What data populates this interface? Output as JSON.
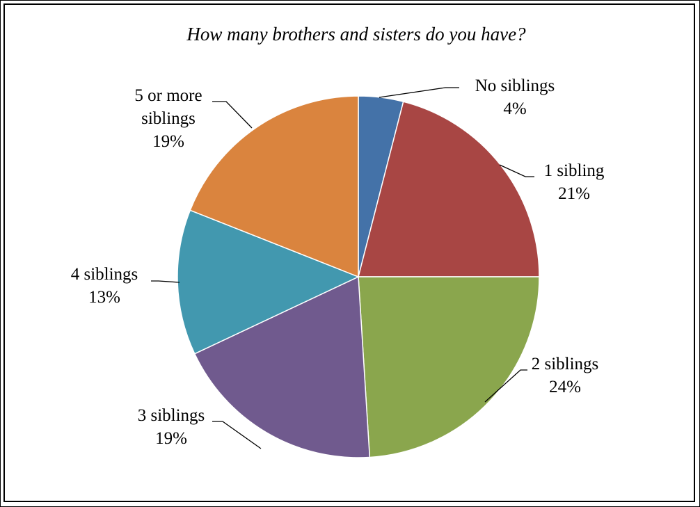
{
  "chart_data": {
    "type": "pie",
    "title": "How many brothers and sisters do you have?",
    "start_angle_deg": 0,
    "direction": "clockwise",
    "slices": [
      {
        "label_lines": [
          "No siblings"
        ],
        "percent_text": "4%",
        "value": 4,
        "color": "#4472A8"
      },
      {
        "label_lines": [
          "1 sibling"
        ],
        "percent_text": "21%",
        "value": 21,
        "color": "#A84644"
      },
      {
        "label_lines": [
          "2 siblings"
        ],
        "percent_text": "24%",
        "value": 24,
        "color": "#8AA64D"
      },
      {
        "label_lines": [
          "3 siblings"
        ],
        "percent_text": "19%",
        "value": 19,
        "color": "#705A8E"
      },
      {
        "label_lines": [
          "4 siblings"
        ],
        "percent_text": "13%",
        "value": 13,
        "color": "#4298AF"
      },
      {
        "label_lines": [
          "5 or more",
          "siblings"
        ],
        "percent_text": "19%",
        "value": 19,
        "color": "#DA843E"
      }
    ]
  }
}
